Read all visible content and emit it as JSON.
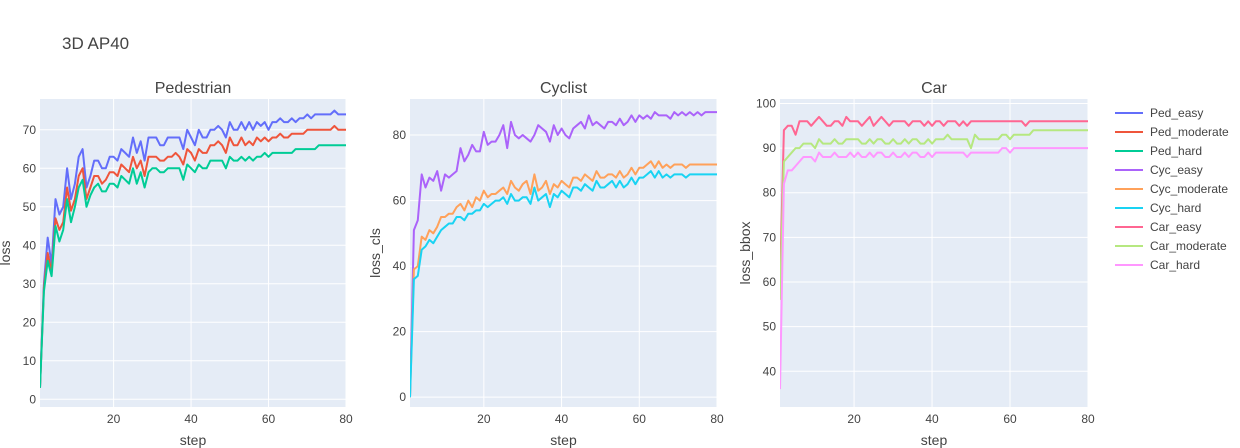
{
  "chart_data": {
    "type": "line",
    "title": "3D AP40",
    "legend": {
      "placement": "right",
      "entries": [
        {
          "name": "Ped_easy",
          "color": "#636efa"
        },
        {
          "name": "Ped_moderate",
          "color": "#ef553b"
        },
        {
          "name": "Ped_hard",
          "color": "#00cc96"
        },
        {
          "name": "Cyc_easy",
          "color": "#ab63fa"
        },
        {
          "name": "Cyc_moderate",
          "color": "#ffa15a"
        },
        {
          "name": "Cyc_hard",
          "color": "#19d3f3"
        },
        {
          "name": "Car_easy",
          "color": "#ff6692"
        },
        {
          "name": "Car_moderate",
          "color": "#b6e880"
        },
        {
          "name": "Car_hard",
          "color": "#ff97ff"
        }
      ]
    },
    "subplots": [
      {
        "title": "Pedestrian",
        "xlabel": "step",
        "ylabel": "loss",
        "xlim": [
          1,
          80
        ],
        "ylim": [
          -2,
          78
        ],
        "xticks": [
          20,
          40,
          60,
          80
        ],
        "yticks": [
          0,
          10,
          20,
          30,
          40,
          50,
          60,
          70
        ],
        "series": [
          {
            "name": "Ped_easy",
            "color": "#636efa",
            "values": [
              3,
              30,
              42,
              35,
              52,
              48,
              50,
              60,
              52,
              56,
              63,
              65,
              55,
              58,
              62,
              62,
              60,
              60,
              63,
              63,
              62,
              65,
              64,
              63,
              68,
              64,
              67,
              62,
              68,
              68,
              68,
              66,
              66,
              68,
              68,
              68,
              68,
              65,
              70,
              68,
              66,
              70,
              68,
              68,
              70,
              70,
              71,
              70,
              68,
              72,
              70,
              70,
              72,
              70,
              72,
              70,
              72,
              71,
              72,
              70,
              72,
              72,
              73,
              72,
              72,
              73,
              72,
              73,
              73,
              74,
              73,
              74,
              74,
              74,
              74,
              74,
              75,
              74,
              74,
              74
            ]
          },
          {
            "name": "Ped_moderate",
            "color": "#ef553b",
            "values": [
              3,
              29,
              38,
              33,
              47,
              44,
              46,
              55,
              49,
              52,
              58,
              60,
              52,
              55,
              58,
              58,
              56,
              57,
              59,
              59,
              58,
              61,
              60,
              59,
              63,
              60,
              62,
              58,
              63,
              63,
              63,
              62,
              62,
              63,
              63,
              64,
              63,
              61,
              65,
              64,
              62,
              65,
              64,
              64,
              66,
              66,
              67,
              66,
              64,
              68,
              66,
              66,
              68,
              66,
              67,
              66,
              68,
              67,
              68,
              67,
              68,
              68,
              69,
              68,
              68,
              69,
              69,
              69,
              69,
              70,
              70,
              70,
              70,
              70,
              70,
              70,
              71,
              70,
              70,
              70
            ]
          },
          {
            "name": "Ped_hard",
            "color": "#00cc96",
            "values": [
              3,
              28,
              36,
              32,
              45,
              41,
              44,
              52,
              46,
              50,
              55,
              57,
              50,
              53,
              55,
              56,
              54,
              54,
              56,
              56,
              55,
              58,
              57,
              56,
              60,
              56,
              59,
              55,
              59,
              60,
              60,
              59,
              59,
              60,
              60,
              60,
              60,
              57,
              61,
              60,
              59,
              61,
              60,
              60,
              62,
              62,
              62,
              62,
              60,
              63,
              62,
              62,
              63,
              62,
              63,
              62,
              63,
              63,
              64,
              63,
              64,
              64,
              64,
              64,
              64,
              64,
              65,
              65,
              65,
              65,
              65,
              65,
              66,
              66,
              66,
              66,
              66,
              66,
              66,
              66
            ]
          }
        ]
      },
      {
        "title": "Cyclist",
        "xlabel": "step",
        "ylabel": "loss_cls",
        "xlim": [
          1,
          80
        ],
        "ylim": [
          -3,
          91
        ],
        "xticks": [
          20,
          40,
          60,
          80
        ],
        "yticks": [
          0,
          20,
          40,
          60,
          80
        ],
        "series": [
          {
            "name": "Cyc_easy",
            "color": "#ab63fa",
            "values": [
              0,
              51,
              54,
              68,
              64,
              67,
              66,
              69,
              63,
              68,
              67,
              68,
              69,
              76,
              72,
              74,
              77,
              75,
              75,
              81,
              77,
              78,
              78,
              80,
              83,
              76,
              84,
              80,
              79,
              80,
              79,
              78,
              80,
              83,
              82,
              81,
              78,
              83,
              80,
              82,
              80,
              79,
              82,
              83,
              84,
              82,
              86,
              83,
              84,
              83,
              82,
              84,
              84,
              83,
              85,
              83,
              84,
              86,
              84,
              86,
              85,
              86,
              85,
              87,
              86,
              86,
              86,
              85,
              87,
              86,
              87,
              86,
              87,
              86,
              87,
              86,
              87,
              87,
              87,
              87
            ]
          },
          {
            "name": "Cyc_moderate",
            "color": "#ffa15a",
            "values": [
              0,
              39,
              40,
              49,
              48,
              51,
              50,
              52,
              55,
              55,
              56,
              56,
              58,
              59,
              57,
              60,
              58,
              61,
              60,
              63,
              61,
              62,
              62,
              63,
              64,
              62,
              66,
              64,
              63,
              65,
              66,
              62,
              68,
              63,
              64,
              66,
              62,
              65,
              64,
              66,
              65,
              64,
              67,
              67,
              66,
              68,
              67,
              66,
              69,
              67,
              67,
              68,
              68,
              67,
              69,
              67,
              68,
              70,
              68,
              70,
              70,
              71,
              72,
              70,
              72,
              70,
              71,
              70,
              71,
              71,
              71,
              70,
              71,
              71,
              71,
              71,
              71,
              71,
              71,
              71
            ]
          },
          {
            "name": "Cyc_hard",
            "color": "#19d3f3",
            "values": [
              0,
              36,
              37,
              45,
              46,
              48,
              47,
              49,
              51,
              52,
              53,
              53,
              55,
              55,
              54,
              56,
              56,
              57,
              57,
              59,
              58,
              59,
              60,
              60,
              61,
              59,
              62,
              60,
              60,
              61,
              61,
              59,
              64,
              60,
              61,
              62,
              58,
              62,
              61,
              63,
              62,
              61,
              64,
              64,
              63,
              65,
              64,
              63,
              66,
              64,
              64,
              65,
              66,
              64,
              66,
              64,
              65,
              67,
              65,
              67,
              67,
              68,
              69,
              67,
              69,
              67,
              68,
              67,
              68,
              68,
              68,
              67,
              68,
              68,
              68,
              68,
              68,
              68,
              68,
              68
            ]
          }
        ]
      },
      {
        "title": "Car",
        "xlabel": "step",
        "ylabel": "loss_bbox",
        "xlim": [
          1,
          80
        ],
        "ylim": [
          32,
          101
        ],
        "xticks": [
          20,
          40,
          60,
          80
        ],
        "yticks": [
          40,
          50,
          60,
          70,
          80,
          90,
          100
        ],
        "series": [
          {
            "name": "Car_easy",
            "color": "#ff6692",
            "values": [
              60,
              94,
              95,
              95,
              93,
              96,
              96,
              96,
              95,
              96,
              97,
              96,
              95,
              95,
              96,
              96,
              95,
              97,
              96,
              96,
              96,
              95,
              96,
              97,
              95,
              96,
              97,
              96,
              95,
              96,
              96,
              96,
              96,
              95,
              96,
              96,
              96,
              95,
              96,
              95,
              96,
              96,
              95,
              96,
              96,
              96,
              95,
              96,
              95,
              96,
              96,
              96,
              96,
              96,
              96,
              96,
              96,
              96,
              96,
              96,
              96,
              96,
              96,
              95,
              96,
              96,
              96,
              96,
              96,
              96,
              96,
              96,
              96,
              96,
              96,
              96,
              96,
              96,
              96,
              96
            ]
          },
          {
            "name": "Car_moderate",
            "color": "#b6e880",
            "values": [
              56,
              87,
              88,
              89,
              90,
              90,
              91,
              91,
              91,
              90,
              92,
              91,
              91,
              91,
              92,
              91,
              91,
              92,
              92,
              92,
              92,
              91,
              91,
              92,
              91,
              92,
              92,
              91,
              91,
              92,
              91,
              91,
              92,
              91,
              92,
              92,
              91,
              91,
              92,
              91,
              92,
              92,
              92,
              93,
              92,
              92,
              92,
              92,
              92,
              90,
              93,
              92,
              92,
              92,
              92,
              92,
              92,
              93,
              93,
              92,
              93,
              93,
              93,
              93,
              93,
              94,
              94,
              94,
              94,
              94,
              94,
              94,
              94,
              94,
              94,
              94,
              94,
              94,
              94,
              94
            ]
          },
          {
            "name": "Car_hard",
            "color": "#ff97ff",
            "values": [
              36,
              82,
              85,
              85,
              86,
              87,
              88,
              88,
              88,
              87,
              89,
              88,
              88,
              88,
              89,
              88,
              88,
              88,
              89,
              88,
              89,
              88,
              88,
              89,
              88,
              89,
              89,
              88,
              88,
              89,
              88,
              88,
              89,
              88,
              89,
              89,
              88,
              88,
              89,
              88,
              89,
              89,
              89,
              89,
              89,
              89,
              89,
              89,
              88,
              89,
              89,
              89,
              89,
              89,
              89,
              89,
              89,
              90,
              90,
              89,
              90,
              90,
              90,
              90,
              90,
              90,
              90,
              90,
              90,
              90,
              90,
              90,
              90,
              90,
              90,
              90,
              90,
              90,
              90,
              90
            ]
          }
        ]
      }
    ]
  }
}
